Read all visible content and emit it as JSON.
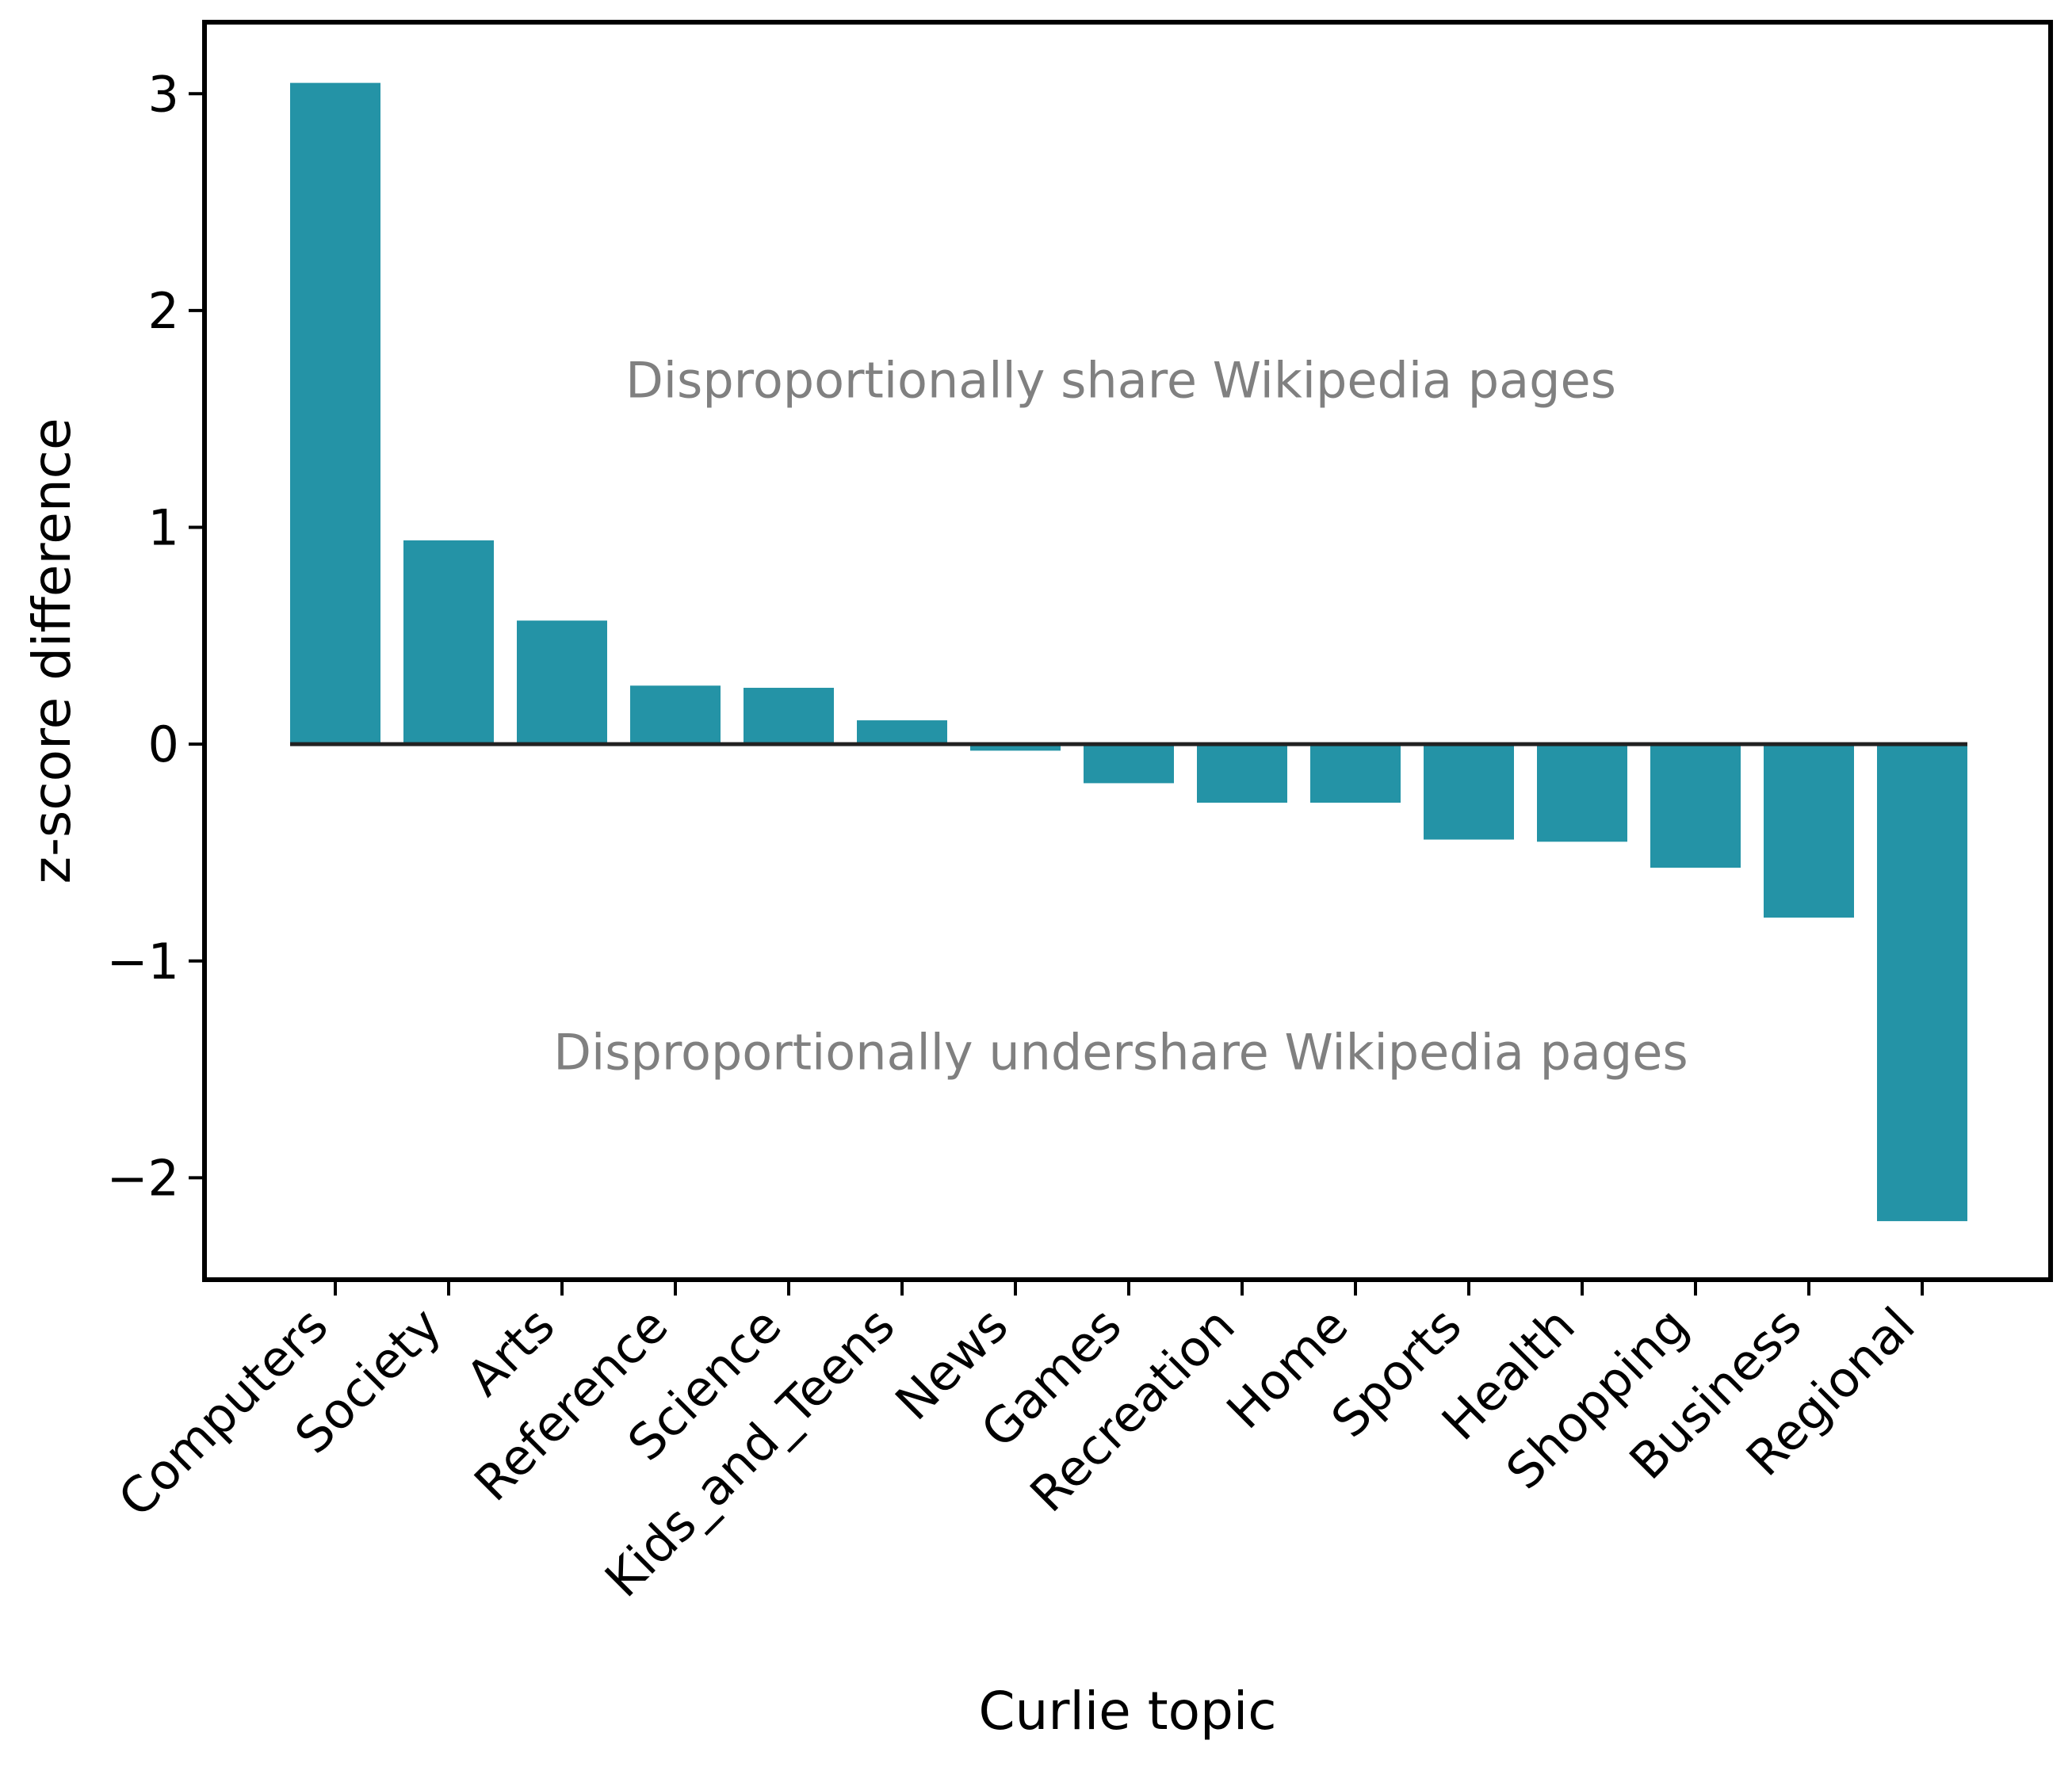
{
  "chart_data": {
    "type": "bar",
    "title": "",
    "xlabel": "Curlie topic",
    "ylabel": "z-score difference",
    "categories": [
      "Computers",
      "Society",
      "Arts",
      "Reference",
      "Science",
      "Kids_and_Teens",
      "News",
      "Games",
      "Recreation",
      "Home",
      "Sports",
      "Health",
      "Shopping",
      "Business",
      "Regional"
    ],
    "values": [
      3.05,
      0.94,
      0.57,
      0.27,
      0.26,
      0.11,
      -0.03,
      -0.18,
      -0.27,
      -0.27,
      -0.44,
      -0.45,
      -0.57,
      -0.8,
      -2.2
    ],
    "ylim": [
      -2.47,
      3.33
    ],
    "yticks": [
      -2,
      -1,
      0,
      1,
      2,
      3
    ],
    "ytick_labels": [
      "−2",
      "−1",
      "0",
      "1",
      "2",
      "3"
    ],
    "bar_color": "#2493a6",
    "zero_line_color": "#222222",
    "grid": false,
    "annotations": [
      {
        "text": "Disproportionally share Wikipedia pages",
        "x": 7,
        "y": 1.68
      },
      {
        "text": "Disproportionally undershare Wikipedia pages",
        "x": 7,
        "y": -1.42
      }
    ]
  }
}
